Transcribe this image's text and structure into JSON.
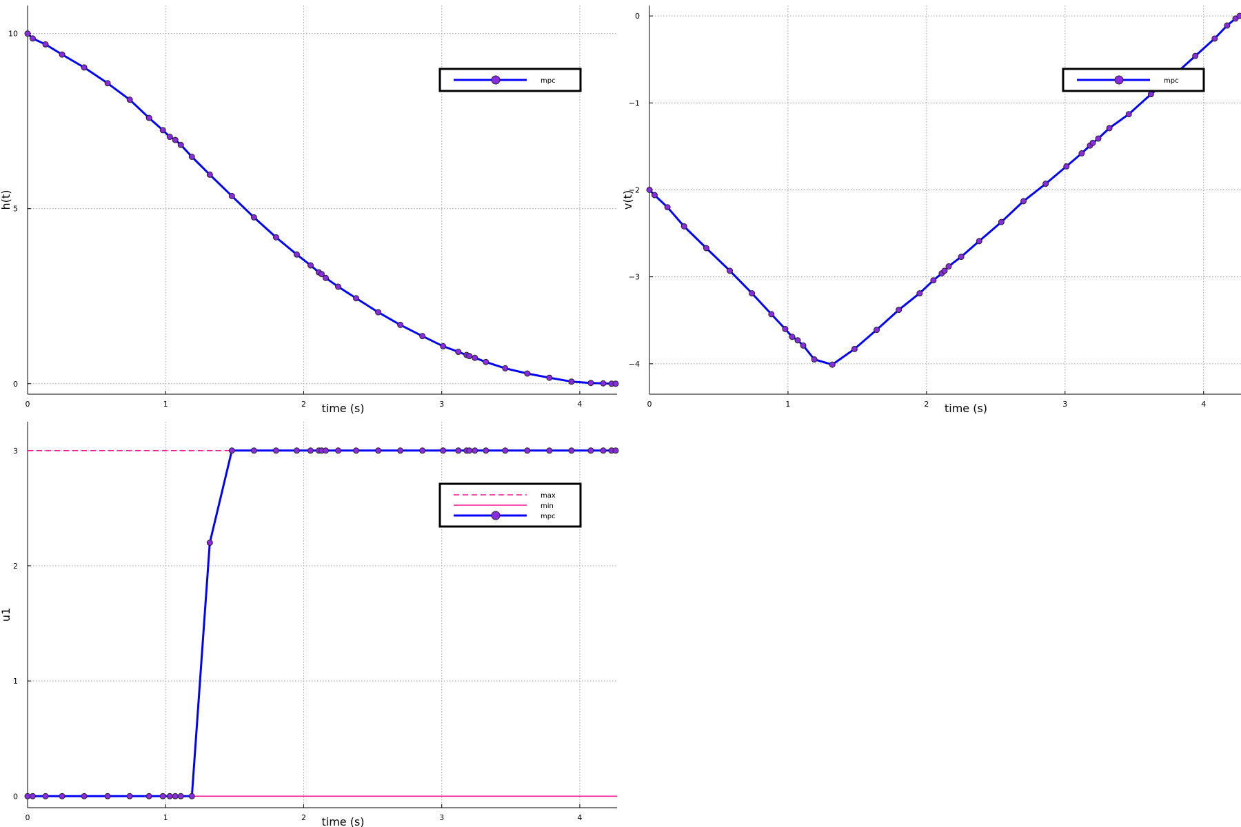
{
  "chart_data": [
    {
      "id": "h",
      "type": "line",
      "xlabel": "time (s)",
      "ylabel": "h(t)",
      "xlim": [
        0,
        4.27
      ],
      "ylim": [
        -0.3,
        10.8
      ],
      "xticks": [
        0,
        1,
        2,
        3,
        4
      ],
      "yticks": [
        0,
        5,
        10
      ],
      "grid": true,
      "legend_position": "top-right",
      "series": [
        {
          "name": "mpc",
          "color": "#0000ff",
          "marker_color": "#8a2be2",
          "style": "solid-marker",
          "x": [
            0,
            0.037,
            0.13,
            0.25,
            0.41,
            0.58,
            0.74,
            0.88,
            0.98,
            1.03,
            1.07,
            1.11,
            1.19,
            1.32,
            1.48,
            1.64,
            1.8,
            1.95,
            2.05,
            2.11,
            2.13,
            2.16,
            2.25,
            2.38,
            2.54,
            2.7,
            2.86,
            3.01,
            3.12,
            3.18,
            3.2,
            3.24,
            3.32,
            3.46,
            3.62,
            3.78,
            3.94,
            4.08,
            4.17,
            4.23,
            4.26
          ],
          "y": [
            10,
            9.86,
            9.69,
            9.4,
            9.03,
            8.58,
            8.11,
            7.59,
            7.24,
            7.05,
            6.96,
            6.82,
            6.48,
            5.97,
            5.36,
            4.75,
            4.18,
            3.69,
            3.38,
            3.18,
            3.13,
            3.02,
            2.77,
            2.44,
            2.04,
            1.68,
            1.36,
            1.07,
            0.91,
            0.82,
            0.79,
            0.74,
            0.62,
            0.44,
            0.29,
            0.17,
            0.06,
            0.02,
            0.01,
            0.0,
            0.0
          ]
        }
      ]
    },
    {
      "id": "v",
      "type": "line",
      "xlabel": "time (s)",
      "ylabel": "v(t)",
      "xlim": [
        0,
        4.27
      ],
      "ylim": [
        -4.35,
        0.12
      ],
      "xticks": [
        0,
        1,
        2,
        3,
        4
      ],
      "yticks": [
        0,
        -1,
        -2,
        -3,
        -4
      ],
      "ytick_labels": [
        "0",
        "−1",
        "−2",
        "−3",
        "−4"
      ],
      "grid": true,
      "legend_position": "top-right",
      "series": [
        {
          "name": "mpc",
          "color": "#0000ff",
          "marker_color": "#8a2be2",
          "style": "solid-marker",
          "x": [
            0,
            0.037,
            0.13,
            0.25,
            0.41,
            0.58,
            0.74,
            0.88,
            0.98,
            1.03,
            1.07,
            1.11,
            1.19,
            1.32,
            1.48,
            1.64,
            1.8,
            1.95,
            2.05,
            2.11,
            2.13,
            2.16,
            2.25,
            2.38,
            2.54,
            2.7,
            2.86,
            3.01,
            3.12,
            3.18,
            3.2,
            3.24,
            3.32,
            3.46,
            3.62,
            3.78,
            3.94,
            4.08,
            4.17,
            4.23,
            4.26
          ],
          "y": [
            -2.0,
            -2.06,
            -2.2,
            -2.42,
            -2.67,
            -2.93,
            -3.19,
            -3.43,
            -3.6,
            -3.69,
            -3.73,
            -3.79,
            -3.95,
            -4.01,
            -3.83,
            -3.61,
            -3.38,
            -3.19,
            -3.04,
            -2.96,
            -2.93,
            -2.88,
            -2.77,
            -2.59,
            -2.37,
            -2.13,
            -1.93,
            -1.73,
            -1.58,
            -1.49,
            -1.46,
            -1.41,
            -1.29,
            -1.13,
            -0.9,
            -0.69,
            -0.46,
            -0.26,
            -0.11,
            -0.03,
            0.0
          ]
        }
      ]
    },
    {
      "id": "u1",
      "type": "line",
      "xlabel": "time (s)",
      "ylabel": "u1",
      "xlim": [
        0,
        4.27
      ],
      "ylim": [
        -0.1,
        3.25
      ],
      "xticks": [
        0,
        1,
        2,
        3,
        4
      ],
      "yticks": [
        0,
        1,
        2,
        3
      ],
      "grid": true,
      "legend_position": "top-right",
      "series": [
        {
          "name": "max",
          "color": "#ff1493",
          "style": "dashed",
          "x": [
            0,
            4.27
          ],
          "y": [
            3,
            3
          ]
        },
        {
          "name": "min",
          "color": "#ff1493",
          "style": "solid",
          "x": [
            0,
            4.27
          ],
          "y": [
            0,
            0
          ]
        },
        {
          "name": "mpc",
          "color": "#0000ff",
          "marker_color": "#8a2be2",
          "style": "solid-marker",
          "x": [
            0,
            0.037,
            0.13,
            0.25,
            0.41,
            0.58,
            0.74,
            0.88,
            0.98,
            1.03,
            1.07,
            1.11,
            1.19,
            1.32,
            1.48,
            1.64,
            1.8,
            1.95,
            2.05,
            2.11,
            2.13,
            2.16,
            2.25,
            2.38,
            2.54,
            2.7,
            2.86,
            3.01,
            3.12,
            3.18,
            3.2,
            3.24,
            3.32,
            3.46,
            3.62,
            3.78,
            3.94,
            4.08,
            4.17,
            4.23,
            4.26
          ],
          "y": [
            0,
            0,
            0,
            0,
            0,
            0,
            0,
            0,
            0,
            0,
            0,
            0,
            0,
            2.2,
            3,
            3,
            3,
            3,
            3,
            3,
            3,
            3,
            3,
            3,
            3,
            3,
            3,
            3,
            3,
            3,
            3,
            3,
            3,
            3,
            3,
            3,
            3,
            3,
            3,
            3,
            3
          ]
        }
      ]
    }
  ]
}
